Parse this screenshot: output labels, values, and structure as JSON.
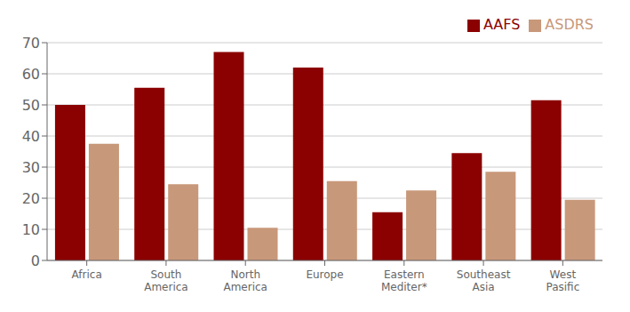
{
  "chart_data": {
    "type": "bar",
    "categories": [
      "Africa",
      "South\nAmerica",
      "North\nAmerica",
      "Europe",
      "Eastern\nMediter*",
      "Southeast\nAsia",
      "West\nPasific"
    ],
    "series": [
      {
        "name": "AAFS",
        "color": "#8B0000",
        "values": [
          50,
          55.5,
          67,
          62,
          15.5,
          34.5,
          51.5
        ]
      },
      {
        "name": "ASDRS",
        "color": "#C8987A",
        "values": [
          37.5,
          24.5,
          10.5,
          25.5,
          22.5,
          28.5,
          19.5
        ]
      }
    ],
    "ylim": [
      0,
      70
    ],
    "yticks": [
      0,
      10,
      20,
      30,
      40,
      50,
      60,
      70
    ],
    "grid": true,
    "legend": "upper right"
  }
}
